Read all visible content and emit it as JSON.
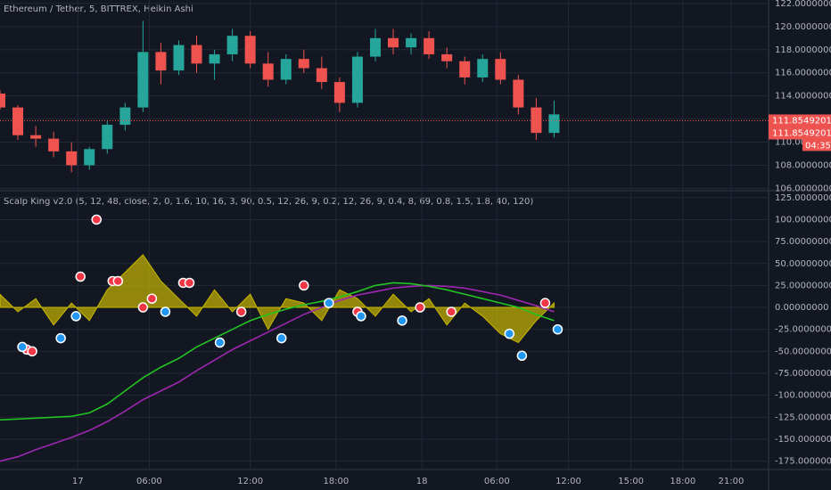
{
  "chart_data": [
    {
      "type": "candlestick",
      "title": "Ethereum / Tether, 5, BITTREX, Heikin Ashi",
      "up_color": "#26a69a",
      "down_color": "#ef5350",
      "xlim": [
        0,
        86
      ],
      "x": [
        0,
        2,
        4,
        6,
        8,
        10,
        12,
        14,
        16,
        18,
        20,
        22,
        24,
        26,
        28,
        30,
        32,
        34,
        36,
        38,
        40,
        42,
        44,
        46,
        48,
        50,
        52,
        54,
        56,
        58,
        60,
        62
      ],
      "candles": [
        [
          114.2,
          114.5,
          112.8,
          113.0
        ],
        [
          113.0,
          113.2,
          110.2,
          110.6
        ],
        [
          110.6,
          111.4,
          109.6,
          110.3
        ],
        [
          110.3,
          110.9,
          108.7,
          109.2
        ],
        [
          109.2,
          110.0,
          107.4,
          108.0
        ],
        [
          108.0,
          109.6,
          107.6,
          109.4
        ],
        [
          109.4,
          111.8,
          109.0,
          111.5
        ],
        [
          111.5,
          113.4,
          111.0,
          113.0
        ],
        [
          113.0,
          120.5,
          112.6,
          117.8
        ],
        [
          117.8,
          118.6,
          115.0,
          116.2
        ],
        [
          116.2,
          118.8,
          115.8,
          118.4
        ],
        [
          118.4,
          119.2,
          116.0,
          116.8
        ],
        [
          116.8,
          118.0,
          115.4,
          117.6
        ],
        [
          117.6,
          119.8,
          117.0,
          119.2
        ],
        [
          119.2,
          119.6,
          116.4,
          116.8
        ],
        [
          116.8,
          117.8,
          114.8,
          115.4
        ],
        [
          115.4,
          117.6,
          115.0,
          117.2
        ],
        [
          117.2,
          118.0,
          116.0,
          116.4
        ],
        [
          116.4,
          117.4,
          114.6,
          115.2
        ],
        [
          115.2,
          115.6,
          112.6,
          113.4
        ],
        [
          113.4,
          117.8,
          113.0,
          117.4
        ],
        [
          117.4,
          119.8,
          117.0,
          119.0
        ],
        [
          119.0,
          119.8,
          117.6,
          118.2
        ],
        [
          118.2,
          119.4,
          117.6,
          119.0
        ],
        [
          119.0,
          119.6,
          117.2,
          117.6
        ],
        [
          117.6,
          118.2,
          116.4,
          117.0
        ],
        [
          117.0,
          117.4,
          115.0,
          115.6
        ],
        [
          115.6,
          117.6,
          115.2,
          117.2
        ],
        [
          117.2,
          117.8,
          115.0,
          115.4
        ],
        [
          115.4,
          115.8,
          112.4,
          113.0
        ],
        [
          113.0,
          113.8,
          110.2,
          110.8
        ],
        [
          110.8,
          113.6,
          110.4,
          112.4
        ]
      ],
      "ylim": [
        105.8,
        122.3
      ],
      "yticks": [
        {
          "value": 106,
          "label": "106.00000000"
        },
        {
          "value": 108,
          "label": "108.00000000"
        },
        {
          "value": 110,
          "label": "110.00000000"
        },
        {
          "value": 112,
          "label": "112.00000000"
        },
        {
          "value": 114,
          "label": "114.00000000"
        },
        {
          "value": 116,
          "label": "116.00000000"
        },
        {
          "value": 118,
          "label": "118.00000000"
        },
        {
          "value": 120,
          "label": "120.00000000"
        },
        {
          "value": 122,
          "label": "122.00000000"
        }
      ],
      "last_price": {
        "value": 111.85492011,
        "label": "111.85492011"
      },
      "bid_label": "111.85492011",
      "countdown": "04:35",
      "label_color": "#ef5350"
    },
    {
      "type": "indicator",
      "title": "Scalp King v2.0 (5, 12, 48, close, 2, 0, 1.6, 10, 16, 3, 90, 0.5, 12, 26, 9, 0.2, 12, 26, 9, 0.4, 8, 69, 0.8, 1.5, 1.8, 40, 120)",
      "xlim": [
        0,
        86
      ],
      "ylim": [
        -183.5,
        131.9
      ],
      "yticks": [
        {
          "value": 125,
          "label": "125.00000000"
        },
        {
          "value": 100,
          "label": "100.00000000"
        },
        {
          "value": 75,
          "label": "75.00000000"
        },
        {
          "value": 50,
          "label": "50.00000000"
        },
        {
          "value": 25,
          "label": "25.00000000"
        },
        {
          "value": 0,
          "label": "0.00000000"
        },
        {
          "value": -25,
          "label": "-25.00000000"
        },
        {
          "value": -50,
          "label": "-50.00000000"
        },
        {
          "value": -75,
          "label": "-75.00000000"
        },
        {
          "value": -100,
          "label": "-100.00000000"
        },
        {
          "value": -125,
          "label": "-125.00000000"
        },
        {
          "value": -150,
          "label": "-150.00000000"
        },
        {
          "value": -175,
          "label": "-175.00000000"
        }
      ],
      "xticks": [
        {
          "value": 8.7,
          "label": "17"
        },
        {
          "value": 16.7,
          "label": "06:00"
        },
        {
          "value": 28,
          "label": "12:00"
        },
        {
          "value": 37.6,
          "label": "18:00"
        },
        {
          "value": 47.2,
          "label": "18"
        },
        {
          "value": 55.6,
          "label": "06:00"
        },
        {
          "value": 63.6,
          "label": "12:00"
        },
        {
          "value": 70.6,
          "label": "15:00"
        },
        {
          "value": 76.4,
          "label": "18:00"
        },
        {
          "value": 81.8,
          "label": "21:00"
        }
      ],
      "series": [
        {
          "kind": "area",
          "color": "#c9b800",
          "x": [
            0,
            2,
            4,
            6,
            8,
            10,
            12,
            14,
            16,
            18,
            20,
            22,
            24,
            26,
            28,
            30,
            32,
            34,
            36,
            38,
            40,
            42,
            44,
            46,
            48,
            50,
            52,
            54,
            56,
            58,
            60,
            62
          ],
          "values": [
            15,
            -5,
            10,
            -20,
            5,
            -15,
            20,
            40,
            60,
            30,
            10,
            -10,
            20,
            -5,
            15,
            -25,
            10,
            5,
            -15,
            20,
            10,
            -10,
            15,
            -5,
            10,
            -20,
            5,
            -10,
            -30,
            -40,
            -15,
            5
          ]
        },
        {
          "kind": "line",
          "color": "#9c27b0",
          "x": [
            0,
            2,
            4,
            6,
            8,
            10,
            12,
            14,
            16,
            18,
            20,
            22,
            24,
            26,
            28,
            30,
            32,
            34,
            36,
            38,
            40,
            42,
            44,
            46,
            48,
            50,
            52,
            54,
            56,
            58,
            60,
            62
          ],
          "values": [
            -175,
            -170,
            -162,
            -155,
            -148,
            -140,
            -130,
            -118,
            -105,
            -95,
            -85,
            -72,
            -60,
            -48,
            -38,
            -28,
            -18,
            -8,
            0,
            8,
            14,
            18,
            22,
            24,
            25,
            24,
            22,
            18,
            14,
            8,
            2,
            -5
          ]
        },
        {
          "kind": "line",
          "color": "#22c322",
          "x": [
            0,
            2,
            4,
            6,
            8,
            10,
            12,
            14,
            16,
            18,
            20,
            22,
            24,
            26,
            28,
            30,
            32,
            34,
            36,
            38,
            40,
            42,
            44,
            46,
            48,
            50,
            52,
            54,
            56,
            58,
            60,
            62
          ],
          "values": [
            -128,
            -127,
            -126,
            -125,
            -124,
            -120,
            -110,
            -95,
            -80,
            -68,
            -58,
            -45,
            -35,
            -25,
            -15,
            -8,
            -2,
            3,
            7,
            12,
            18,
            25,
            28,
            27,
            24,
            20,
            15,
            10,
            5,
            0,
            -8,
            -15
          ]
        },
        {
          "kind": "scatter",
          "color": "#f23645",
          "x": [
            3,
            3.6,
            9,
            10.8,
            12.6,
            13.2,
            16,
            17,
            20.5,
            21.2,
            27,
            34,
            40,
            47,
            50.5,
            61
          ],
          "values": [
            -48,
            -50,
            35,
            100,
            30,
            30,
            0,
            10,
            28,
            28,
            -5,
            25,
            -5,
            0,
            -5,
            5
          ]
        },
        {
          "kind": "scatter",
          "color": "#2196f3",
          "x": [
            2.5,
            6.8,
            8.5,
            18.5,
            24.6,
            31.5,
            36.8,
            40.4,
            45,
            57,
            58.4,
            62.4
          ],
          "values": [
            -45,
            -35,
            -10,
            -5,
            -40,
            -35,
            5,
            -10,
            -15,
            -30,
            -55,
            -25
          ]
        }
      ]
    }
  ]
}
